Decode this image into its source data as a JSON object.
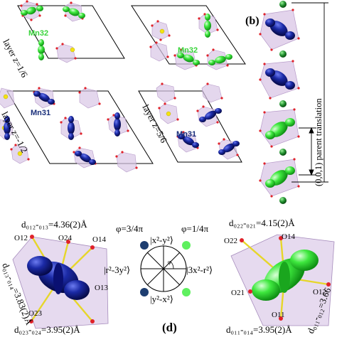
{
  "panel_a": {
    "layer_top_left": "layer z=1/6",
    "layer_bottom_left": "layer z=-1/2",
    "layer_bottom_right": "layer z=5/6",
    "mn32_label_1": "Mn32",
    "mn32_label_2": "Mn32",
    "mn31_label_1": "Mn31",
    "mn31_label_2": "Mn31"
  },
  "panel_b": {
    "label": "(b)",
    "translation": "(0,0,1) parent translation"
  },
  "panel_c": {
    "distance_top": "d₀₁₂-₀₁₃=4.36(2)Å",
    "distance_side": "d₀₁₃-₀₁₄=3.83(2)Å",
    "distance_bottom": "d₀₂₃-₀₂₄=3.95(2)Å",
    "oxygens": [
      "O12",
      "O24",
      "O14",
      "O13",
      "O23"
    ]
  },
  "panel_d": {
    "label": "(d)",
    "phi_left": "φ=3/4π",
    "phi_right": "φ=1/4π",
    "orb_top": "|x²-y²⟩",
    "orb_left": "|r²-3y²⟩",
    "orb_right": "|3x²-r²⟩",
    "orb_bottom": "|y²-x²⟩",
    "angle_mark": "φ"
  },
  "panel_e": {
    "distance_top": "d₀₂₂-₀₂₁=4.15(2)Å",
    "distance_side": "d₀₁₁-₀₁₂=3.66",
    "distance_bottom": "d₀₁₁-₀₁₄=3.95(2)Å",
    "oxygens": [
      "O22",
      "O14",
      "O21",
      "O11",
      "O12"
    ]
  },
  "colors": {
    "blue_orbital": "#15208f",
    "green_orbital": "#3ee83e",
    "polyhedron": "#d9c6e6",
    "oxygen": "#e0222a",
    "yellow_atom": "#f3e312",
    "chain_atom": "#1c8a2a"
  }
}
